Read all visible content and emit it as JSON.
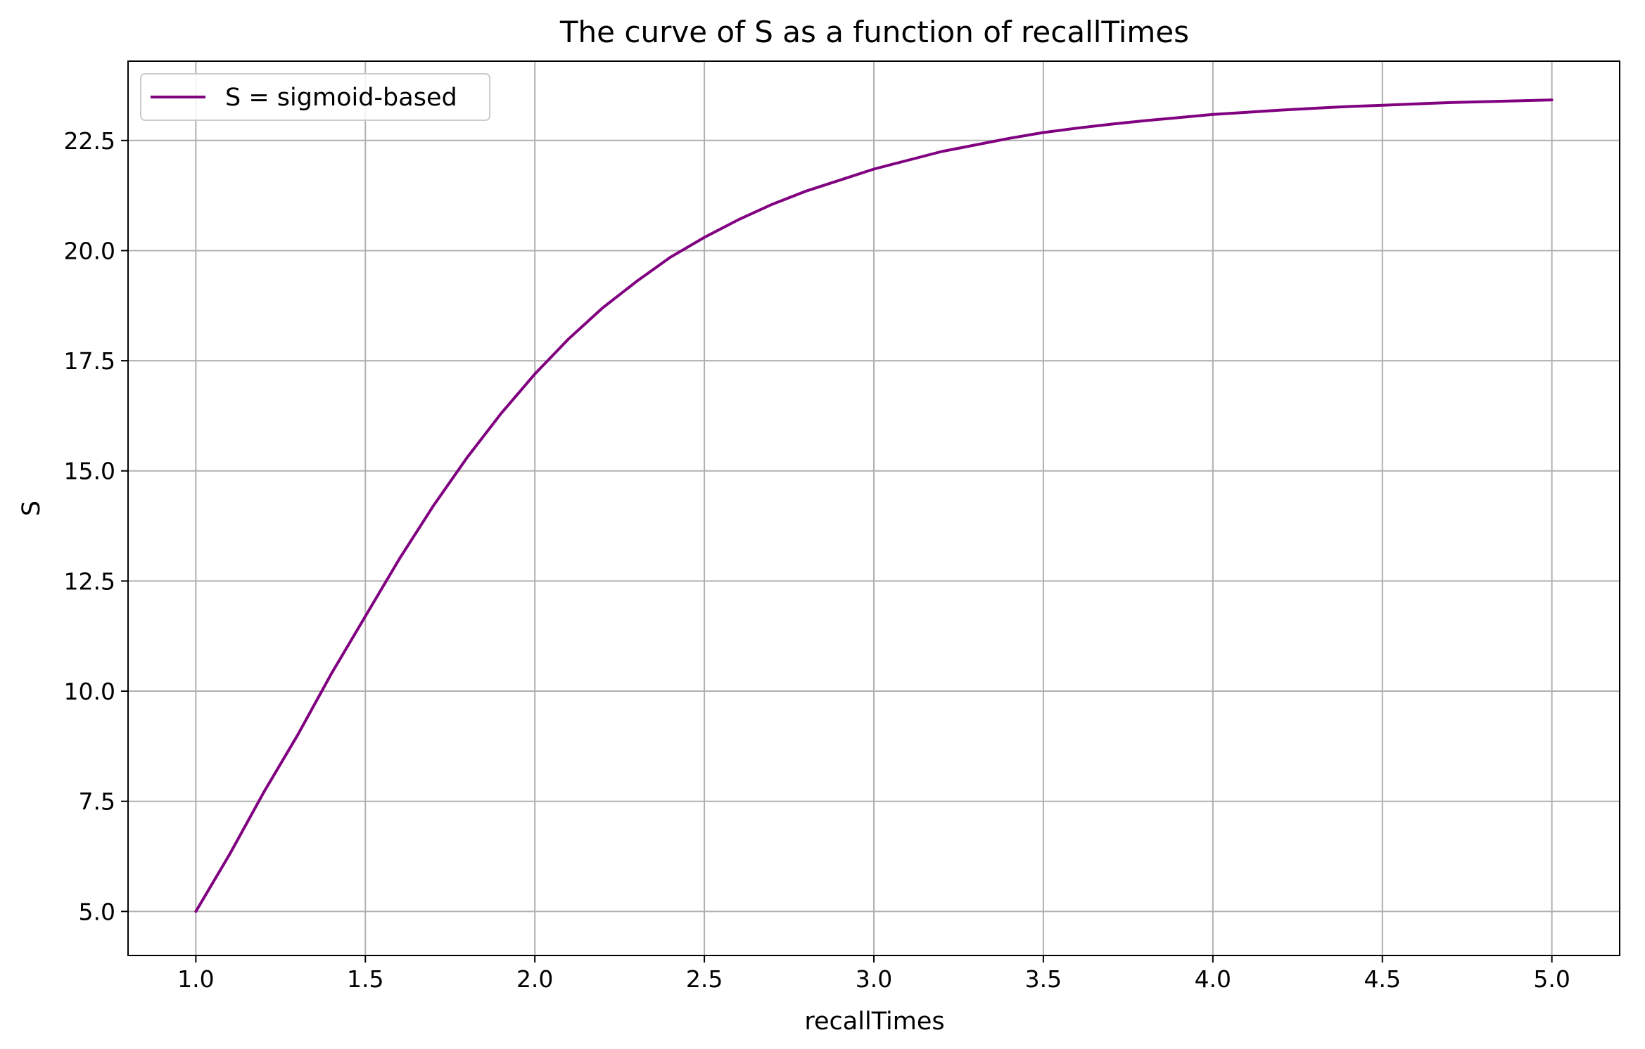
{
  "chart_data": {
    "type": "line",
    "title": "The curve of S as a function of recallTimes",
    "xlabel": "recallTimes",
    "ylabel": "S",
    "xlim": [
      0.8,
      5.2
    ],
    "ylim": [
      4.0,
      24.3
    ],
    "grid": true,
    "legend_position": "top-left",
    "x_ticks": [
      1.0,
      1.5,
      2.0,
      2.5,
      3.0,
      3.5,
      4.0,
      4.5,
      5.0
    ],
    "x_tick_labels": [
      "1.0",
      "1.5",
      "2.0",
      "2.5",
      "3.0",
      "3.5",
      "4.0",
      "4.5",
      "5.0"
    ],
    "y_ticks": [
      5.0,
      7.5,
      10.0,
      12.5,
      15.0,
      17.5,
      20.0,
      22.5
    ],
    "y_tick_labels": [
      "5.0",
      "7.5",
      "10.0",
      "12.5",
      "15.0",
      "17.5",
      "20.0",
      "22.5"
    ],
    "series": [
      {
        "name": "S = sigmoid-based",
        "color": "#800080",
        "x": [
          1.0,
          1.1,
          1.2,
          1.3,
          1.4,
          1.5,
          1.6,
          1.7,
          1.8,
          1.9,
          2.0,
          2.1,
          2.2,
          2.3,
          2.4,
          2.5,
          2.6,
          2.7,
          2.8,
          2.9,
          3.0,
          3.1,
          3.2,
          3.3,
          3.4,
          3.5,
          3.6,
          3.7,
          3.8,
          3.9,
          4.0,
          4.1,
          4.2,
          4.3,
          4.4,
          4.5,
          4.6,
          4.7,
          4.8,
          4.9,
          5.0
        ],
        "y": [
          5.0,
          6.3,
          7.7,
          9.0,
          10.4,
          11.7,
          13.0,
          14.2,
          15.3,
          16.3,
          17.2,
          18.0,
          18.7,
          19.3,
          19.85,
          20.3,
          20.7,
          21.05,
          21.35,
          21.6,
          21.85,
          22.05,
          22.25,
          22.4,
          22.55,
          22.68,
          22.78,
          22.87,
          22.95,
          23.02,
          23.09,
          23.14,
          23.19,
          23.23,
          23.27,
          23.3,
          23.33,
          23.36,
          23.38,
          23.4,
          23.42
        ]
      }
    ]
  }
}
